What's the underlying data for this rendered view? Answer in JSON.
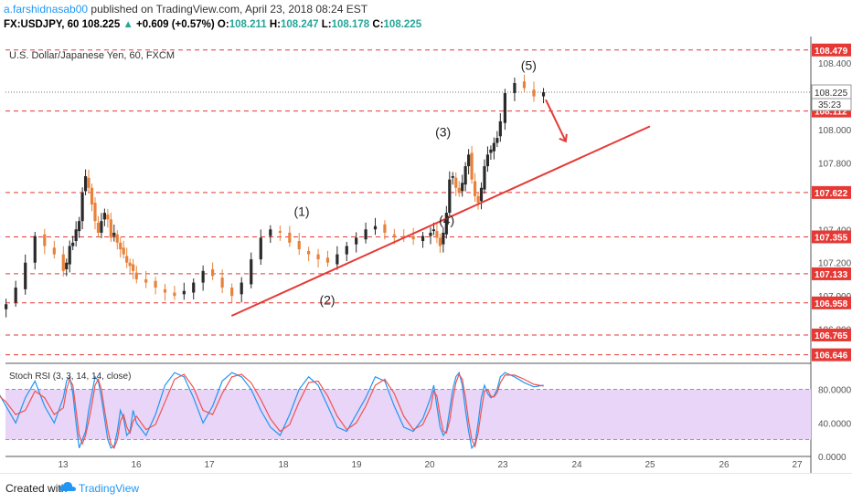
{
  "header": {
    "author": "a.farshidnasab00",
    "published": "published on TradingView.com, April 23, 2018 08:24 EST",
    "symbol_line": "FX:USDJPY, 60",
    "last": "108.225",
    "change": "+0.609 (+0.57%)",
    "o_label": "O:",
    "o": "108.211",
    "h_label": "H:",
    "h": "108.247",
    "l_label": "L:",
    "l": "108.178",
    "c_label": "C:",
    "c": "108.225"
  },
  "footer": {
    "created": "Created with",
    "brand": "TradingView"
  },
  "chart_data": [
    {
      "type": "candlestick",
      "title": "U.S. Dollar/Japanese Yen, 60, FXCM",
      "ylim": [
        106.6,
        108.56
      ],
      "y_ticks": [
        "108.400",
        "108.000",
        "107.800",
        "107.400",
        "107.200",
        "107.000",
        "106.800"
      ],
      "x_ticks": [
        "13",
        "16",
        "17",
        "18",
        "19",
        "20",
        "23",
        "24",
        "25",
        "26",
        "27"
      ],
      "last_price_label": "108.225",
      "countdown": "35:23",
      "levels": [
        108.479,
        108.112,
        107.622,
        107.355,
        107.133,
        106.958,
        106.765,
        106.646
      ],
      "level_labels": [
        "108.479",
        "108.112",
        "107.622",
        "107.355",
        "107.133",
        "106.958",
        "106.765",
        "106.646"
      ],
      "trendline": [
        [
          17.3,
          106.88
        ],
        [
          25.0,
          108.02
        ]
      ],
      "wave_labels": [
        {
          "text": "(1)",
          "x": 18.25,
          "y": 107.48
        },
        {
          "text": "(2)",
          "x": 18.6,
          "y": 106.95
        },
        {
          "text": "(3)",
          "x": 20.55,
          "y": 107.96
        },
        {
          "text": "(4)",
          "x": 20.7,
          "y": 107.43
        },
        {
          "text": "(5)",
          "x": 23.35,
          "y": 108.36
        }
      ],
      "close": [
        106.92,
        106.95,
        107.05,
        107.2,
        107.36,
        107.3,
        107.25,
        107.15,
        107.2,
        107.3,
        107.32,
        107.4,
        107.45,
        107.62,
        107.72,
        107.65,
        107.55,
        107.45,
        107.38,
        107.45,
        107.5,
        107.46,
        107.35,
        107.38,
        107.32,
        107.28,
        107.25,
        107.2,
        107.18,
        107.15,
        107.1,
        107.08,
        107.05,
        107.02,
        107.0,
        107.03,
        107.08,
        107.15,
        107.12,
        107.05,
        107.0,
        107.08,
        107.22,
        107.35,
        107.4,
        107.38,
        107.32,
        107.28,
        107.25,
        107.22,
        107.2,
        107.25,
        107.3,
        107.35,
        107.4,
        107.42,
        107.38,
        107.36,
        107.35,
        107.34,
        107.36,
        107.38,
        107.4,
        107.35,
        107.3,
        107.38,
        107.5,
        107.7,
        107.72,
        107.65,
        107.62,
        107.68,
        107.78,
        107.85,
        107.7,
        107.6,
        107.56,
        107.65,
        107.78,
        107.85,
        107.88,
        107.92,
        107.95,
        108.05,
        108.22,
        108.28,
        108.25,
        108.2,
        108.225
      ],
      "stoch_rsi": {
        "label": "Stoch RSI (3, 3, 14, 14, close)",
        "ylim": [
          0,
          110
        ],
        "y_ticks": [
          "80.0000",
          "40.0000",
          "0.0000"
        ],
        "bands": [
          20,
          80
        ],
        "k": [
          80,
          60,
          40,
          70,
          90,
          60,
          40,
          70,
          90,
          95,
          75,
          40,
          10,
          20,
          30,
          55,
          75,
          95,
          90,
          70,
          45,
          20,
          10,
          12,
          30,
          55,
          45,
          25,
          30,
          55,
          40,
          25,
          50,
          85,
          100,
          95,
          70,
          40,
          60,
          90,
          100,
          95,
          80,
          55,
          35,
          25,
          50,
          80,
          95,
          85,
          60,
          35,
          30,
          50,
          70,
          95,
          90,
          60,
          35,
          30,
          45,
          70,
          85,
          60,
          35,
          25,
          30,
          55,
          80,
          95,
          100,
          85,
          55,
          30,
          10,
          15,
          40,
          70,
          85,
          75,
          70,
          72,
          80,
          95,
          100,
          95,
          88,
          83,
          85
        ],
        "d": [
          75,
          65,
          50,
          55,
          78,
          70,
          50,
          58,
          80,
          92,
          85,
          55,
          25,
          15,
          25,
          42,
          62,
          85,
          92,
          80,
          55,
          32,
          15,
          10,
          20,
          42,
          50,
          35,
          28,
          42,
          48,
          32,
          38,
          65,
          92,
          98,
          82,
          55,
          50,
          75,
          95,
          98,
          88,
          68,
          45,
          30,
          38,
          65,
          88,
          90,
          72,
          48,
          32,
          40,
          60,
          85,
          92,
          75,
          48,
          32,
          38,
          58,
          78,
          72,
          48,
          30,
          28,
          42,
          68,
          88,
          98,
          92,
          70,
          42,
          20,
          12,
          28,
          55,
          78,
          80,
          72,
          71,
          76,
          88,
          97,
          97,
          92,
          86,
          84
        ]
      }
    }
  ],
  "colors": {
    "bull": "#2a2a2a",
    "bear": "#e8823a",
    "level": "#e53935",
    "trend": "#e53935",
    "k_line": "#2196f3",
    "d_line": "#ef5350",
    "band_fill": "#e8d5f8",
    "brand": "#2196f3"
  }
}
